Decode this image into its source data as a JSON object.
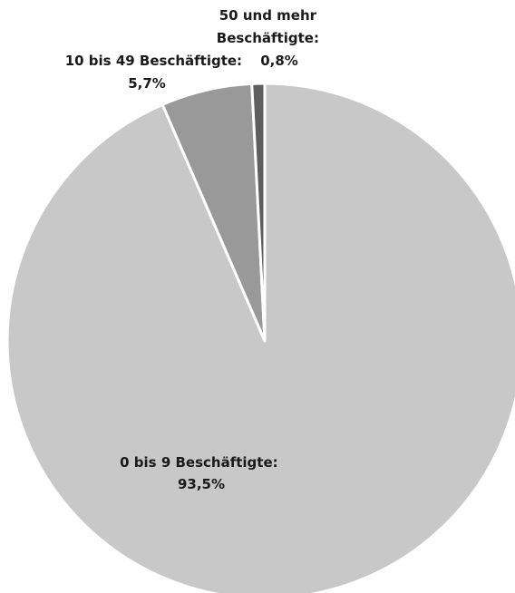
{
  "chart_data": {
    "type": "pie",
    "slices": [
      {
        "name": "0 bis 9 Beschäftigte:",
        "value": 93.5,
        "value_label": "93,5%",
        "color": "#c8c8c8"
      },
      {
        "name": "10 bis 49 Beschäftigte:",
        "value": 5.7,
        "value_label": "5,7%",
        "color": "#999999"
      },
      {
        "name": "50 und mehr Beschäftigte:",
        "value": 0.8,
        "value_label": "0,8%",
        "color": "#5f5f5f"
      }
    ],
    "label_lines": {
      "s0": [
        "0 bis 9 Beschäftigte:",
        "93,5%"
      ],
      "s1": [
        "10 bis 49 Beschäftigte:",
        "5,7%"
      ],
      "s2": [
        "50 und mehr",
        "Beschäftigte:",
        "0,8%"
      ]
    },
    "start_angle": "12 o'clock",
    "direction": "clockwise",
    "legend": "none"
  }
}
